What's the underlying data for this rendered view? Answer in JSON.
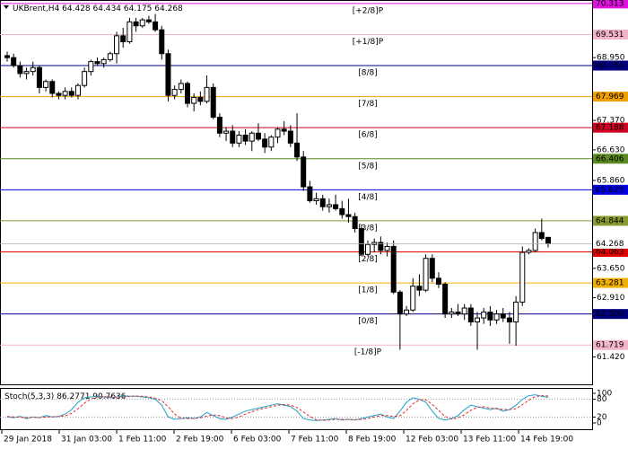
{
  "chart_data": {
    "type": "candlestick",
    "symbol": "UKBrent,H4",
    "ylim": [
      60.73,
      70.4
    ],
    "yticks": [
      {
        "value": 68.95,
        "label": "68.950"
      },
      {
        "value": 67.37,
        "label": "67.370"
      },
      {
        "value": 66.63,
        "label": "66.630"
      },
      {
        "value": 65.86,
        "label": "65.860"
      },
      {
        "value": 63.65,
        "label": "63.650"
      },
      {
        "value": 62.91,
        "label": "62.910"
      },
      {
        "value": 61.42,
        "label": "61.420"
      }
    ],
    "levels": [
      {
        "name": "[+2/8]P",
        "value": 70.313,
        "color": "#e010e0"
      },
      {
        "name": "[+1/8]P",
        "value": 69.531,
        "color": "#f4b4c8"
      },
      {
        "name": "[8/8]",
        "value": 68.75,
        "value_label": "68.750",
        "color": "#000080"
      },
      {
        "name": "[7/8]",
        "value": 67.969,
        "color": "#f0a000"
      },
      {
        "name": "[6/8]",
        "value": 67.188,
        "color": "#d00020"
      },
      {
        "name": "[5/8]",
        "value": 66.406,
        "color": "#5a8a20"
      },
      {
        "name": "[4/8]",
        "value": 65.625,
        "color": "#0000e0"
      },
      {
        "name": "[3/8]",
        "value": 64.844,
        "color": "#8a9a30"
      },
      {
        "name": "[2/8]",
        "value": 64.063,
        "color": "#e00000"
      },
      {
        "name": "[1/8]",
        "value": 63.281,
        "color": "#f0b000"
      },
      {
        "name": "[0/8]",
        "value": 62.5,
        "value_label": "62.500",
        "color": "#000080"
      },
      {
        "name": "[-1/8]P",
        "value": 61.719,
        "color": "#f4b4c8"
      }
    ],
    "time_labels": [
      "29 Jan 2018",
      "31 Jan 03:00",
      "1 Feb 11:00",
      "2 Feb 19:00",
      "6 Feb 03:00",
      "7 Feb 11:00",
      "8 Feb 19:00",
      "12 Feb 03:00",
      "13 Feb 11:00",
      "14 Feb 19:00"
    ],
    "candles": [
      {
        "open": 69.0,
        "high": 69.1,
        "low": 68.85,
        "close": 68.95
      },
      {
        "open": 68.95,
        "high": 69.05,
        "low": 68.7,
        "close": 68.75
      },
      {
        "open": 68.75,
        "high": 68.85,
        "low": 68.45,
        "close": 68.55
      },
      {
        "open": 68.55,
        "high": 68.7,
        "low": 68.4,
        "close": 68.6
      },
      {
        "open": 68.6,
        "high": 68.85,
        "low": 68.5,
        "close": 68.7
      },
      {
        "open": 68.7,
        "high": 68.75,
        "low": 68.05,
        "close": 68.2
      },
      {
        "open": 68.2,
        "high": 68.4,
        "low": 68.1,
        "close": 68.35
      },
      {
        "open": 68.35,
        "high": 68.4,
        "low": 67.95,
        "close": 68.05
      },
      {
        "open": 68.05,
        "high": 68.1,
        "low": 67.9,
        "close": 68.0
      },
      {
        "open": 68.0,
        "high": 68.2,
        "low": 67.9,
        "close": 68.1
      },
      {
        "open": 68.1,
        "high": 68.2,
        "low": 67.95,
        "close": 68.0
      },
      {
        "open": 68.0,
        "high": 68.3,
        "low": 67.9,
        "close": 68.25
      },
      {
        "open": 68.25,
        "high": 68.7,
        "low": 68.2,
        "close": 68.6
      },
      {
        "open": 68.6,
        "high": 68.9,
        "low": 68.5,
        "close": 68.85
      },
      {
        "open": 68.85,
        "high": 68.95,
        "low": 68.75,
        "close": 68.8
      },
      {
        "open": 68.8,
        "high": 68.95,
        "low": 68.7,
        "close": 68.9
      },
      {
        "open": 68.9,
        "high": 69.1,
        "low": 68.85,
        "close": 69.05
      },
      {
        "open": 69.05,
        "high": 69.6,
        "low": 68.8,
        "close": 69.5
      },
      {
        "open": 69.5,
        "high": 69.7,
        "low": 69.2,
        "close": 69.35
      },
      {
        "open": 69.35,
        "high": 69.95,
        "low": 69.3,
        "close": 69.85
      },
      {
        "open": 69.85,
        "high": 69.95,
        "low": 69.6,
        "close": 69.75
      },
      {
        "open": 69.75,
        "high": 69.95,
        "low": 69.7,
        "close": 69.9
      },
      {
        "open": 69.9,
        "high": 70.0,
        "low": 69.8,
        "close": 69.85
      },
      {
        "open": 69.85,
        "high": 70.05,
        "low": 69.6,
        "close": 69.65
      },
      {
        "open": 69.65,
        "high": 69.75,
        "low": 68.9,
        "close": 69.05
      },
      {
        "open": 69.05,
        "high": 69.15,
        "low": 67.85,
        "close": 68.0
      },
      {
        "open": 68.0,
        "high": 68.25,
        "low": 67.9,
        "close": 68.15
      },
      {
        "open": 68.15,
        "high": 68.4,
        "low": 68.05,
        "close": 68.3
      },
      {
        "open": 68.3,
        "high": 68.35,
        "low": 67.7,
        "close": 67.8
      },
      {
        "open": 67.8,
        "high": 68.05,
        "low": 67.6,
        "close": 67.95
      },
      {
        "open": 67.95,
        "high": 68.1,
        "low": 67.75,
        "close": 67.85
      },
      {
        "open": 67.85,
        "high": 68.5,
        "low": 67.8,
        "close": 68.2
      },
      {
        "open": 68.2,
        "high": 68.3,
        "low": 67.4,
        "close": 67.45
      },
      {
        "open": 67.45,
        "high": 67.55,
        "low": 66.95,
        "close": 67.05
      },
      {
        "open": 67.05,
        "high": 67.2,
        "low": 66.85,
        "close": 67.1
      },
      {
        "open": 67.1,
        "high": 67.25,
        "low": 66.7,
        "close": 66.8
      },
      {
        "open": 66.8,
        "high": 67.1,
        "low": 66.7,
        "close": 67.0
      },
      {
        "open": 67.0,
        "high": 67.15,
        "low": 66.75,
        "close": 66.85
      },
      {
        "open": 66.85,
        "high": 67.1,
        "low": 66.6,
        "close": 67.05
      },
      {
        "open": 67.05,
        "high": 67.3,
        "low": 66.85,
        "close": 66.9
      },
      {
        "open": 66.9,
        "high": 67.05,
        "low": 66.55,
        "close": 66.7
      },
      {
        "open": 66.7,
        "high": 67.0,
        "low": 66.6,
        "close": 66.95
      },
      {
        "open": 66.95,
        "high": 67.2,
        "low": 66.8,
        "close": 67.15
      },
      {
        "open": 67.15,
        "high": 67.35,
        "low": 67.0,
        "close": 67.1
      },
      {
        "open": 67.1,
        "high": 67.25,
        "low": 66.7,
        "close": 66.8
      },
      {
        "open": 66.8,
        "high": 67.55,
        "low": 66.35,
        "close": 66.45
      },
      {
        "open": 66.45,
        "high": 66.6,
        "low": 65.6,
        "close": 65.7
      },
      {
        "open": 65.7,
        "high": 65.85,
        "low": 65.3,
        "close": 65.35
      },
      {
        "open": 65.35,
        "high": 65.55,
        "low": 65.25,
        "close": 65.4
      },
      {
        "open": 65.4,
        "high": 65.5,
        "low": 65.1,
        "close": 65.2
      },
      {
        "open": 65.2,
        "high": 65.4,
        "low": 65.05,
        "close": 65.25
      },
      {
        "open": 65.25,
        "high": 65.5,
        "low": 65.1,
        "close": 65.15
      },
      {
        "open": 65.15,
        "high": 65.35,
        "low": 64.9,
        "close": 65.0
      },
      {
        "open": 65.0,
        "high": 65.4,
        "low": 64.8,
        "close": 64.95
      },
      {
        "open": 64.95,
        "high": 65.05,
        "low": 64.55,
        "close": 64.65
      },
      {
        "open": 64.65,
        "high": 64.75,
        "low": 63.95,
        "close": 64.0
      },
      {
        "open": 64.0,
        "high": 64.35,
        "low": 63.95,
        "close": 64.25
      },
      {
        "open": 64.25,
        "high": 64.4,
        "low": 64.05,
        "close": 64.3
      },
      {
        "open": 64.3,
        "high": 64.45,
        "low": 64.0,
        "close": 64.1
      },
      {
        "open": 64.1,
        "high": 64.3,
        "low": 63.95,
        "close": 64.2
      },
      {
        "open": 64.2,
        "high": 64.35,
        "low": 63.0,
        "close": 63.05
      },
      {
        "open": 63.05,
        "high": 63.1,
        "low": 61.6,
        "close": 62.5
      },
      {
        "open": 62.5,
        "high": 62.7,
        "low": 62.45,
        "close": 62.6
      },
      {
        "open": 62.6,
        "high": 63.4,
        "low": 62.55,
        "close": 63.2
      },
      {
        "open": 63.2,
        "high": 63.5,
        "low": 62.95,
        "close": 63.1
      },
      {
        "open": 63.1,
        "high": 64.0,
        "low": 63.05,
        "close": 63.9
      },
      {
        "open": 63.9,
        "high": 64.0,
        "low": 63.3,
        "close": 63.4
      },
      {
        "open": 63.4,
        "high": 63.55,
        "low": 63.15,
        "close": 63.25
      },
      {
        "open": 63.25,
        "high": 63.3,
        "low": 62.4,
        "close": 62.5
      },
      {
        "open": 62.5,
        "high": 62.65,
        "low": 62.4,
        "close": 62.55
      },
      {
        "open": 62.55,
        "high": 62.75,
        "low": 62.45,
        "close": 62.5
      },
      {
        "open": 62.5,
        "high": 62.75,
        "low": 62.35,
        "close": 62.65
      },
      {
        "open": 62.65,
        "high": 62.75,
        "low": 62.2,
        "close": 62.3
      },
      {
        "open": 62.3,
        "high": 62.55,
        "low": 61.6,
        "close": 62.4
      },
      {
        "open": 62.4,
        "high": 62.65,
        "low": 62.25,
        "close": 62.55
      },
      {
        "open": 62.55,
        "high": 62.7,
        "low": 62.2,
        "close": 62.35
      },
      {
        "open": 62.35,
        "high": 62.6,
        "low": 62.25,
        "close": 62.5
      },
      {
        "open": 62.5,
        "high": 62.65,
        "low": 62.3,
        "close": 62.4
      },
      {
        "open": 62.4,
        "high": 62.55,
        "low": 61.75,
        "close": 62.3
      },
      {
        "open": 62.3,
        "high": 62.95,
        "low": 61.7,
        "close": 62.8
      },
      {
        "open": 62.8,
        "high": 64.2,
        "low": 62.7,
        "close": 64.05
      },
      {
        "open": 64.05,
        "high": 64.15,
        "low": 64.0,
        "close": 64.1
      },
      {
        "open": 64.1,
        "high": 64.65,
        "low": 64.05,
        "close": 64.55
      },
      {
        "open": 64.55,
        "high": 64.9,
        "low": 64.35,
        "close": 64.4
      },
      {
        "open": 64.428,
        "high": 64.434,
        "low": 64.175,
        "close": 64.268
      }
    ],
    "indicator": {
      "title": "Stoch(5,3,3)",
      "ylim": [
        0,
        100
      ],
      "yticks": [
        100,
        80,
        20,
        0
      ],
      "levels": [
        80,
        20
      ],
      "series": [
        {
          "color": "#20a0c8",
          "values": [
            20,
            18,
            22,
            15,
            20,
            18,
            25,
            20,
            22,
            30,
            45,
            70,
            85,
            88,
            90,
            88,
            85,
            88,
            92,
            90,
            90,
            88,
            85,
            80,
            60,
            20,
            12,
            15,
            18,
            15,
            20,
            35,
            25,
            15,
            12,
            20,
            30,
            40,
            45,
            50,
            55,
            60,
            65,
            60,
            55,
            40,
            15,
            10,
            8,
            10,
            12,
            15,
            10,
            12,
            10,
            15,
            20,
            25,
            30,
            20,
            15,
            40,
            70,
            85,
            80,
            70,
            40,
            15,
            10,
            15,
            25,
            45,
            60,
            55,
            50,
            45,
            50,
            40,
            45,
            60,
            80,
            92,
            95,
            90,
            86.2771
          ]
        },
        {
          "color": "#e03030",
          "dash": true,
          "values": [
            22,
            20,
            19,
            18,
            19,
            18,
            20,
            21,
            22,
            24,
            32,
            48,
            67,
            81,
            88,
            89,
            88,
            87,
            88,
            90,
            91,
            90,
            88,
            84,
            75,
            55,
            30,
            16,
            15,
            16,
            17,
            23,
            27,
            25,
            17,
            15,
            20,
            30,
            38,
            45,
            50,
            55,
            60,
            62,
            60,
            52,
            37,
            22,
            11,
            9,
            10,
            12,
            12,
            12,
            11,
            12,
            15,
            20,
            25,
            25,
            22,
            25,
            42,
            65,
            78,
            78,
            63,
            42,
            22,
            13,
            17,
            28,
            43,
            53,
            55,
            50,
            48,
            45,
            45,
            48,
            62,
            77,
            89,
            92,
            90.7636
          ]
        }
      ]
    }
  }
}
